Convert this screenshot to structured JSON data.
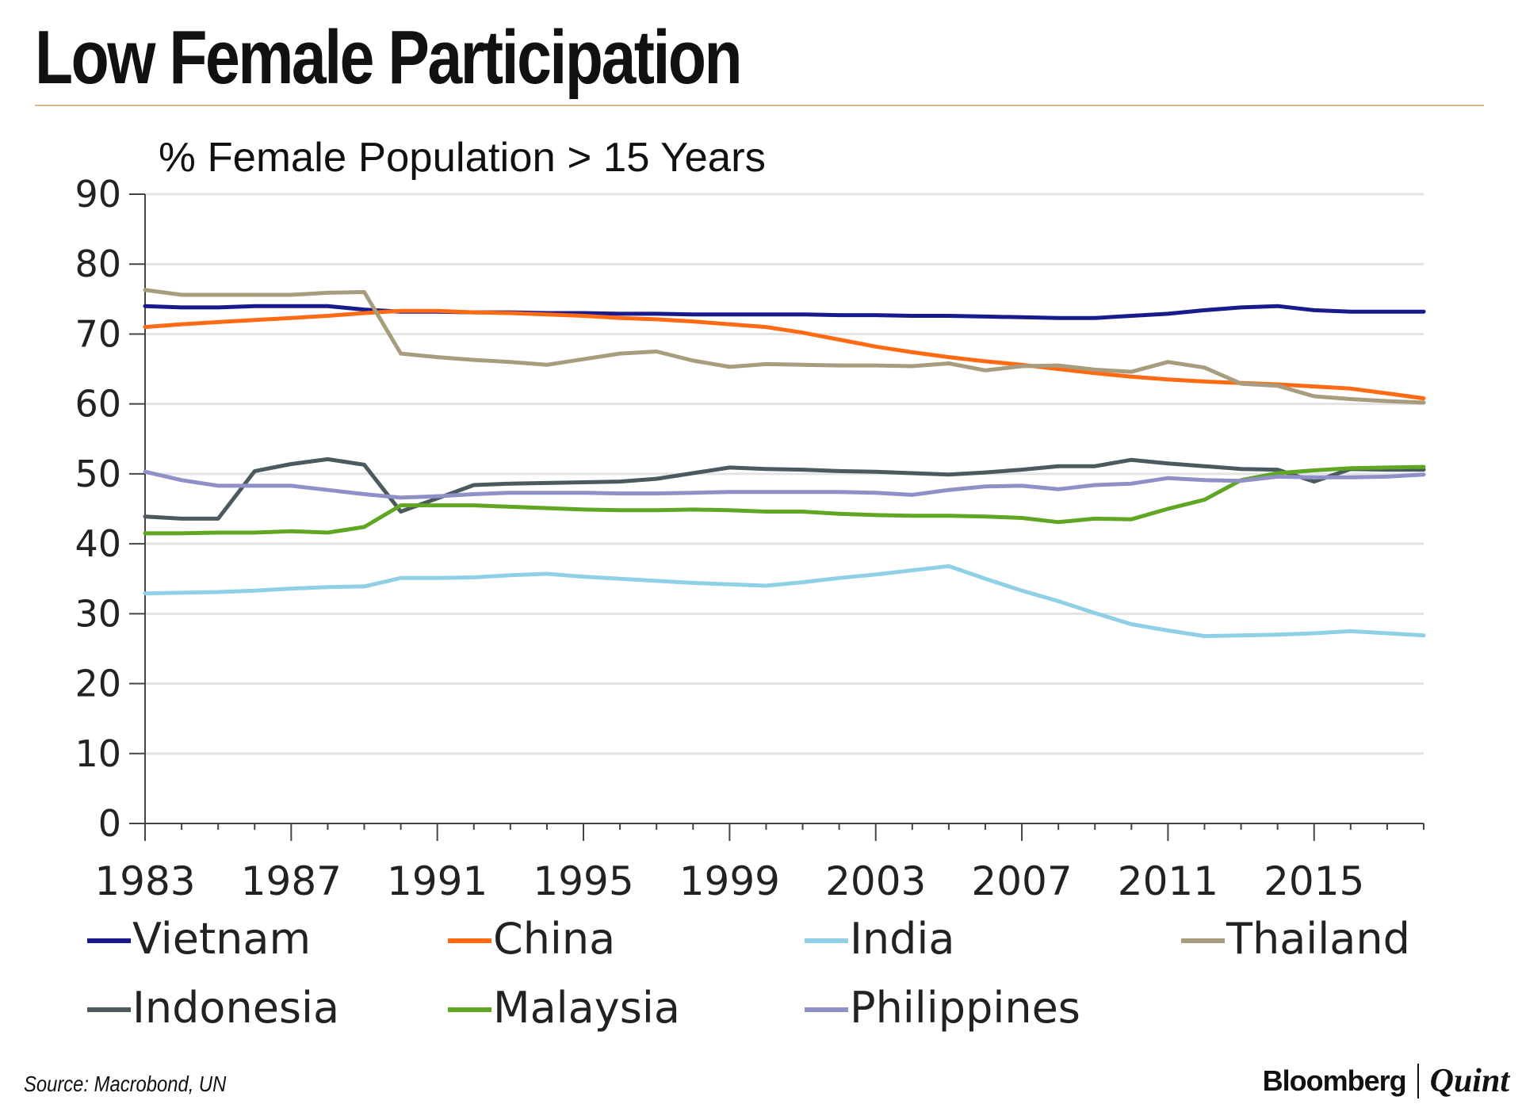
{
  "header": {
    "title": "Low Female Participation"
  },
  "footer": {
    "source": "Source: Macrobond, UN",
    "brand_primary": "Bloomberg",
    "brand_secondary": "Quint"
  },
  "chart_data": {
    "type": "line",
    "title": "% Female Population > 15 Years",
    "xlabel": "",
    "ylabel": "",
    "xlim": [
      1983,
      2018
    ],
    "ylim": [
      0,
      90
    ],
    "yticks": [
      0,
      10,
      20,
      30,
      40,
      50,
      60,
      70,
      80,
      90
    ],
    "xticks": [
      1983,
      1987,
      1991,
      1995,
      1999,
      2003,
      2007,
      2011,
      2015
    ],
    "grid": true,
    "legend_position": "bottom",
    "x": [
      1983,
      1984,
      1985,
      1986,
      1987,
      1988,
      1989,
      1990,
      1991,
      1992,
      1993,
      1994,
      1995,
      1996,
      1997,
      1998,
      1999,
      2000,
      2001,
      2002,
      2003,
      2004,
      2005,
      2006,
      2007,
      2008,
      2009,
      2010,
      2011,
      2012,
      2013,
      2014,
      2015,
      2016,
      2017,
      2018
    ],
    "series": [
      {
        "name": "Vietnam",
        "color": "#1a1a8f",
        "values": [
          74.0,
          73.8,
          73.8,
          74.0,
          74.0,
          74.0,
          73.5,
          73.2,
          73.2,
          73.1,
          73.1,
          73.0,
          73.0,
          72.9,
          72.9,
          72.8,
          72.8,
          72.8,
          72.8,
          72.7,
          72.7,
          72.6,
          72.6,
          72.5,
          72.4,
          72.3,
          72.3,
          72.6,
          72.9,
          73.4,
          73.8,
          74.0,
          73.4,
          73.2,
          73.2,
          73.2
        ]
      },
      {
        "name": "China",
        "color": "#ff6a13",
        "values": [
          71.0,
          71.4,
          71.7,
          72.0,
          72.3,
          72.6,
          73.0,
          73.3,
          73.3,
          73.1,
          73.0,
          72.8,
          72.6,
          72.3,
          72.1,
          71.8,
          71.4,
          71.0,
          70.2,
          69.2,
          68.2,
          67.4,
          66.7,
          66.1,
          65.6,
          65.0,
          64.4,
          63.9,
          63.5,
          63.2,
          63.0,
          62.8,
          62.5,
          62.2,
          61.5,
          60.8
        ]
      },
      {
        "name": "India",
        "color": "#8fd0e6",
        "values": [
          32.9,
          33.0,
          33.1,
          33.3,
          33.6,
          33.8,
          33.9,
          35.1,
          35.1,
          35.2,
          35.5,
          35.7,
          35.3,
          35.0,
          34.7,
          34.4,
          34.2,
          34.0,
          34.5,
          35.1,
          35.6,
          36.2,
          36.8,
          35.0,
          33.3,
          31.8,
          30.1,
          28.5,
          27.6,
          26.8,
          26.9,
          27.0,
          27.2,
          27.5,
          27.2,
          26.9
        ]
      },
      {
        "name": "Thailand",
        "color": "#a89c7e",
        "values": [
          76.3,
          75.6,
          75.6,
          75.6,
          75.6,
          75.9,
          76.0,
          67.2,
          66.7,
          66.3,
          66.0,
          65.6,
          66.4,
          67.2,
          67.5,
          66.2,
          65.3,
          65.7,
          65.6,
          65.5,
          65.5,
          65.4,
          65.8,
          64.8,
          65.4,
          65.5,
          64.9,
          64.6,
          66.0,
          65.2,
          62.9,
          62.6,
          61.1,
          60.7,
          60.4,
          60.2
        ]
      },
      {
        "name": "Indonesia",
        "color": "#4a5a5f",
        "values": [
          43.9,
          43.6,
          43.6,
          50.4,
          51.4,
          52.1,
          51.3,
          44.6,
          46.5,
          48.4,
          48.6,
          48.7,
          48.8,
          48.9,
          49.3,
          50.1,
          50.9,
          50.7,
          50.6,
          50.4,
          50.3,
          50.1,
          49.9,
          50.2,
          50.6,
          51.1,
          51.1,
          52.0,
          51.5,
          51.1,
          50.7,
          50.6,
          48.9,
          50.7,
          50.6,
          50.6
        ]
      },
      {
        "name": "Malaysia",
        "color": "#5fa622",
        "values": [
          41.5,
          41.5,
          41.6,
          41.6,
          41.8,
          41.6,
          42.4,
          45.5,
          45.5,
          45.5,
          45.3,
          45.1,
          44.9,
          44.8,
          44.8,
          44.9,
          44.8,
          44.6,
          44.6,
          44.3,
          44.1,
          44.0,
          44.0,
          43.9,
          43.7,
          43.1,
          43.6,
          43.5,
          45.0,
          46.3,
          49.1,
          50.1,
          50.5,
          50.8,
          50.9,
          51.0
        ]
      },
      {
        "name": "Philippines",
        "color": "#9090c8",
        "values": [
          50.3,
          49.1,
          48.3,
          48.3,
          48.3,
          47.7,
          47.1,
          46.6,
          46.8,
          47.1,
          47.3,
          47.3,
          47.3,
          47.2,
          47.2,
          47.3,
          47.4,
          47.4,
          47.4,
          47.4,
          47.3,
          47.0,
          47.7,
          48.2,
          48.3,
          47.8,
          48.4,
          48.6,
          49.4,
          49.1,
          49.0,
          49.6,
          49.5,
          49.5,
          49.6,
          49.9
        ]
      }
    ]
  }
}
